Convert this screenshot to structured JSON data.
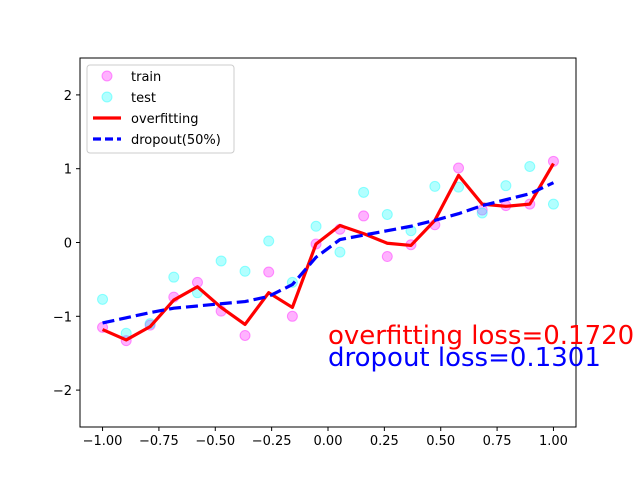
{
  "chart_data": {
    "type": "scatter",
    "xlim": [
      -1.1,
      1.1
    ],
    "ylim": [
      -2.5,
      2.5
    ],
    "x_ticks": [
      -1.0,
      -0.75,
      -0.5,
      -0.25,
      0.0,
      0.25,
      0.5,
      0.75,
      1.0
    ],
    "x_tick_labels": [
      "−1.00",
      "−0.75",
      "−0.50",
      "−0.25",
      "0.00",
      "0.25",
      "0.50",
      "0.75",
      "1.00"
    ],
    "y_ticks": [
      -2,
      -1,
      0,
      1,
      2
    ],
    "y_tick_labels": [
      "−2",
      "−1",
      "0",
      "1",
      "2"
    ],
    "grid": false,
    "legend_position": "top-left",
    "series": [
      {
        "name": "train",
        "kind": "scatter",
        "color": "#ff00ff",
        "x": [
          -1.0,
          -0.895,
          -0.789,
          -0.684,
          -0.579,
          -0.474,
          -0.368,
          -0.263,
          -0.158,
          -0.053,
          0.053,
          0.158,
          0.263,
          0.368,
          0.474,
          0.579,
          0.684,
          0.789,
          0.895,
          1.0
        ],
        "y": [
          -1.15,
          -1.33,
          -1.12,
          -0.74,
          -0.54,
          -0.93,
          -1.26,
          -0.4,
          -1.0,
          -0.02,
          0.18,
          0.36,
          -0.19,
          -0.03,
          0.24,
          1.01,
          0.44,
          0.5,
          0.52,
          1.1
        ]
      },
      {
        "name": "test",
        "kind": "scatter",
        "color": "#00ffff",
        "x": [
          -1.0,
          -0.895,
          -0.789,
          -0.684,
          -0.579,
          -0.474,
          -0.368,
          -0.263,
          -0.158,
          -0.053,
          0.053,
          0.158,
          0.263,
          0.368,
          0.474,
          0.579,
          0.684,
          0.789,
          0.895,
          1.0
        ],
        "y": [
          -0.77,
          -1.23,
          -1.1,
          -0.47,
          -0.68,
          -0.25,
          -0.39,
          0.02,
          -0.54,
          0.22,
          -0.13,
          0.68,
          0.38,
          0.16,
          0.76,
          0.75,
          0.4,
          0.77,
          1.03,
          0.52
        ]
      },
      {
        "name": "overfitting",
        "kind": "line",
        "color": "#ff0000",
        "dash": "solid",
        "x": [
          -1.0,
          -0.895,
          -0.789,
          -0.684,
          -0.579,
          -0.474,
          -0.368,
          -0.263,
          -0.158,
          -0.053,
          0.053,
          0.158,
          0.263,
          0.368,
          0.474,
          0.579,
          0.684,
          0.789,
          0.895,
          1.0
        ],
        "y": [
          -1.18,
          -1.32,
          -1.14,
          -0.78,
          -0.6,
          -0.88,
          -1.11,
          -0.68,
          -0.88,
          -0.02,
          0.23,
          0.12,
          -0.01,
          -0.04,
          0.3,
          0.91,
          0.52,
          0.49,
          0.52,
          1.07
        ]
      },
      {
        "name": "dropout(50%)",
        "kind": "line",
        "color": "#0000ff",
        "dash": "dashed",
        "x": [
          -1.0,
          -0.895,
          -0.789,
          -0.684,
          -0.579,
          -0.474,
          -0.368,
          -0.263,
          -0.158,
          -0.053,
          0.053,
          0.158,
          0.263,
          0.368,
          0.474,
          0.579,
          0.684,
          0.789,
          0.895,
          1.0
        ],
        "y": [
          -1.09,
          -1.02,
          -0.95,
          -0.89,
          -0.86,
          -0.83,
          -0.8,
          -0.73,
          -0.57,
          -0.2,
          0.04,
          0.1,
          0.16,
          0.22,
          0.3,
          0.39,
          0.5,
          0.58,
          0.66,
          0.81
        ]
      }
    ],
    "legend": [
      "train",
      "test",
      "overfitting",
      "dropout(50%)"
    ],
    "annotations": [
      {
        "text": "overfitting loss=0.1720",
        "color": "#ff0000",
        "x": 0.0,
        "y": -1.25
      },
      {
        "text": "dropout loss=0.1301",
        "color": "#0000ff",
        "x": 0.0,
        "y": -1.55
      }
    ]
  }
}
